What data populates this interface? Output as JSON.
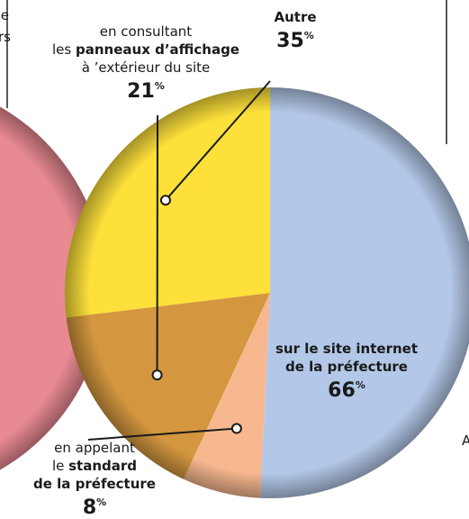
{
  "chart_data": {
    "type": "pie",
    "categories": [
      [
        [
          {
            "text": "sur le site internet",
            "bold": true
          }
        ],
        [
          {
            "text": "de la préfecture",
            "bold": true
          }
        ]
      ],
      [
        [
          {
            "text": "en appelant",
            "bold": false
          }
        ],
        [
          {
            "text": "le ",
            "bold": false
          },
          {
            "text": "standard",
            "bold": true
          }
        ],
        [
          {
            "text": "de la préfecture",
            "bold": true
          }
        ]
      ],
      [
        [
          {
            "text": "en consultant",
            "bold": false
          }
        ],
        [
          {
            "text": "les ",
            "bold": false
          },
          {
            "text": "panneaux d’affichage",
            "bold": true
          }
        ],
        [
          {
            "text": "à ’extérieur du site",
            "bold": false
          }
        ]
      ],
      [
        [
          {
            "text": "Autre",
            "bold": true
          }
        ]
      ]
    ],
    "values": [
      66,
      8,
      21,
      35
    ],
    "unit": "%",
    "colors": [
      "#b3c8e8",
      "#f7b88f",
      "#d4973f",
      "#fde03a"
    ],
    "cropped_text": [
      "e",
      "rs",
      "A"
    ]
  }
}
